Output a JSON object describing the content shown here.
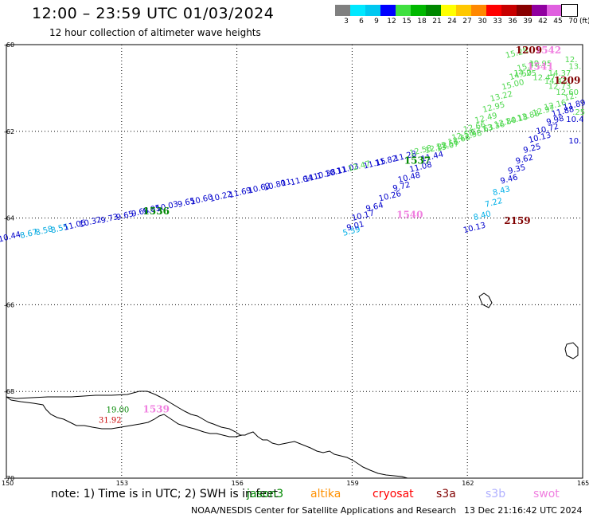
{
  "title": "12:00 – 23:59 UTC 01/03/2024",
  "subtitle": "12 hour collection of altimeter wave heights",
  "legend": {
    "values": [
      "3",
      "6",
      "9",
      "12",
      "15",
      "18",
      "21",
      "24",
      "27",
      "30",
      "33",
      "36",
      "39",
      "42",
      "45",
      "70"
    ],
    "colors": [
      "#808080",
      "#00e8ff",
      "#00c8f0",
      "#0000ff",
      "#40e040",
      "#00b800",
      "#008800",
      "#ffff00",
      "#ffc800",
      "#ff8800",
      "#ff0000",
      "#c80000",
      "#880000",
      "#9000a0",
      "#e060e0",
      "#ffffff"
    ],
    "units": "(ft)"
  },
  "map": {
    "x_ticks": [
      "150",
      "153",
      "156",
      "159",
      "162",
      "165"
    ],
    "y_ticks": [
      "-60",
      "-62",
      "-64",
      "-66",
      "-68",
      "-70"
    ]
  },
  "tracks": [
    {
      "color": "#0000cc",
      "points": [
        {
          "lon": 150.1,
          "lat": -64.49,
          "text": "10.44",
          "color": "#0000cc"
        },
        {
          "lon": 150.6,
          "lat": -64.42,
          "text": "8.67",
          "color": "#00a8e0"
        },
        {
          "lon": 151.0,
          "lat": -64.35,
          "text": "8.58",
          "color": "#00a8e0"
        },
        {
          "lon": 151.4,
          "lat": -64.3,
          "text": "8.55",
          "color": "#00a8e0"
        },
        {
          "lon": 151.8,
          "lat": -64.22,
          "text": "11.05",
          "color": "#0000cc"
        },
        {
          "lon": 152.2,
          "lat": -64.15,
          "text": "10.32",
          "color": "#0000cc"
        },
        {
          "lon": 152.7,
          "lat": -64.07,
          "text": "9.73",
          "color": "#0000cc"
        },
        {
          "lon": 153.1,
          "lat": -64.0,
          "text": "9.65",
          "color": "#0000cc"
        },
        {
          "lon": 153.5,
          "lat": -63.92,
          "text": "9.68",
          "color": "#0000cc"
        },
        {
          "lon": 153.8,
          "lat": -63.86,
          "text": "9.85",
          "color": "#0000cc"
        },
        {
          "lon": 154.2,
          "lat": -63.79,
          "text": "10.03",
          "color": "#0000cc"
        },
        {
          "lon": 154.7,
          "lat": -63.7,
          "text": "9.65",
          "color": "#0000cc"
        },
        {
          "lon": 155.1,
          "lat": -63.63,
          "text": "10.60",
          "color": "#0000cc"
        },
        {
          "lon": 155.6,
          "lat": -63.56,
          "text": "10.22",
          "color": "#0000cc"
        },
        {
          "lon": 156.1,
          "lat": -63.47,
          "text": "11.69",
          "color": "#0000cc"
        },
        {
          "lon": 156.6,
          "lat": -63.37,
          "text": "10.62",
          "color": "#0000cc"
        },
        {
          "lon": 157.0,
          "lat": -63.3,
          "text": "10.80",
          "color": "#0000cc"
        },
        {
          "lon": 157.3,
          "lat": -63.24,
          "text": "11",
          "color": "#0000cc"
        },
        {
          "lon": 157.7,
          "lat": -63.18,
          "text": "11.64",
          "color": "#0000cc"
        },
        {
          "lon": 158.0,
          "lat": -63.12,
          "text": "11.1",
          "color": "#0000cc"
        },
        {
          "lon": 158.3,
          "lat": -63.05,
          "text": "10.38",
          "color": "#0000cc"
        },
        {
          "lon": 158.6,
          "lat": -62.99,
          "text": "10.11",
          "color": "#0000cc"
        },
        {
          "lon": 158.9,
          "lat": -62.92,
          "text": "11.03",
          "color": "#0000cc"
        },
        {
          "lon": 159.2,
          "lat": -62.86,
          "text": "12.47",
          "color": "#50d850"
        },
        {
          "lon": 159.6,
          "lat": -62.8,
          "text": "11.15",
          "color": "#0000cc"
        },
        {
          "lon": 159.9,
          "lat": -62.74,
          "text": "11.82",
          "color": "#0000cc"
        },
        {
          "lon": 160.4,
          "lat": -62.63,
          "text": "11.28",
          "color": "#0000cc"
        },
        {
          "lon": 160.8,
          "lat": -62.5,
          "text": "12.58",
          "color": "#50d850"
        },
        {
          "lon": 161.2,
          "lat": -62.44,
          "text": "12.88",
          "color": "#50d850"
        },
        {
          "lon": 161.5,
          "lat": -62.36,
          "text": "12.56",
          "color": "#50d850"
        },
        {
          "lon": 161.8,
          "lat": -62.25,
          "text": "12.66",
          "color": "#50d850"
        },
        {
          "lon": 162.1,
          "lat": -62.15,
          "text": "12.98",
          "color": "#50d850"
        },
        {
          "lon": 162.4,
          "lat": -62.02,
          "text": "13.63",
          "color": "#50d850"
        },
        {
          "lon": 162.7,
          "lat": -61.95,
          "text": "13.36",
          "color": "#50d850"
        },
        {
          "lon": 163.0,
          "lat": -61.85,
          "text": "12.80",
          "color": "#50d850"
        },
        {
          "lon": 163.3,
          "lat": -61.78,
          "text": "14.18",
          "color": "#50d850"
        },
        {
          "lon": 163.6,
          "lat": -61.7,
          "text": "13.88",
          "color": "#50d850"
        },
        {
          "lon": 164.0,
          "lat": -61.58,
          "text": "12.97",
          "color": "#50d850"
        },
        {
          "lon": 164.3,
          "lat": -61.45,
          "text": "12.16",
          "color": "#50d850"
        },
        {
          "lon": 164.7,
          "lat": -61.26,
          "text": "12.",
          "color": "#50d850"
        }
      ]
    },
    {
      "color": "#0000cc",
      "points": [
        {
          "lon": 159.0,
          "lat": -64.36,
          "text": "5.59",
          "color": "#00b0e8"
        },
        {
          "lon": 159.1,
          "lat": -64.24,
          "text": "9.01",
          "color": "#0000cc"
        },
        {
          "lon": 159.3,
          "lat": -64.0,
          "text": "10.17",
          "color": "#0000cc"
        },
        {
          "lon": 159.6,
          "lat": -63.8,
          "text": "9.64",
          "color": "#0000cc"
        },
        {
          "lon": 160.0,
          "lat": -63.55,
          "text": "10.26",
          "color": "#0000cc"
        },
        {
          "lon": 160.3,
          "lat": -63.33,
          "text": "9.72",
          "color": "#0000cc"
        },
        {
          "lon": 160.5,
          "lat": -63.12,
          "text": "10.48",
          "color": "#0000cc"
        },
        {
          "lon": 160.8,
          "lat": -62.88,
          "text": "11.08",
          "color": "#0000cc"
        },
        {
          "lon": 161.1,
          "lat": -62.64,
          "text": "11.44",
          "color": "#0000cc"
        },
        {
          "lon": 161.5,
          "lat": -62.4,
          "text": "13.07",
          "color": "#50d850"
        },
        {
          "lon": 161.9,
          "lat": -62.15,
          "text": "12.56",
          "color": "#50d850"
        },
        {
          "lon": 162.2,
          "lat": -61.96,
          "text": "12.66",
          "color": "#50d850"
        },
        {
          "lon": 162.5,
          "lat": -61.75,
          "text": "12.49",
          "color": "#50d850"
        },
        {
          "lon": 162.7,
          "lat": -61.5,
          "text": "12.95",
          "color": "#50d850"
        },
        {
          "lon": 162.9,
          "lat": -61.25,
          "text": "13.22",
          "color": "#50d850"
        },
        {
          "lon": 163.2,
          "lat": -60.98,
          "text": "15.00",
          "color": "#50d850"
        },
        {
          "lon": 163.4,
          "lat": -60.75,
          "text": "14.50",
          "color": "#50d850"
        },
        {
          "lon": 163.6,
          "lat": -60.55,
          "text": "15.79",
          "color": "#50d850"
        },
        {
          "lon": 163.3,
          "lat": -60.25,
          "text": "15.25",
          "color": "#50d850"
        }
      ]
    },
    {
      "color": "#0000cc",
      "points": [
        {
          "lon": 162.2,
          "lat": -64.28,
          "text": "10.13",
          "color": "#0000cc"
        },
        {
          "lon": 162.4,
          "lat": -64.0,
          "text": "8.40",
          "color": "#00b0e8"
        },
        {
          "lon": 162.7,
          "lat": -63.7,
          "text": "7.22",
          "color": "#00b0e8"
        },
        {
          "lon": 162.9,
          "lat": -63.43,
          "text": "8.43",
          "color": "#00b0e8"
        },
        {
          "lon": 163.1,
          "lat": -63.16,
          "text": "9.46",
          "color": "#0000cc"
        },
        {
          "lon": 163.3,
          "lat": -62.93,
          "text": "9.35",
          "color": "#0000cc"
        },
        {
          "lon": 163.5,
          "lat": -62.7,
          "text": "9.62",
          "color": "#0000cc"
        },
        {
          "lon": 163.7,
          "lat": -62.45,
          "text": "9.25",
          "color": "#0000cc"
        },
        {
          "lon": 163.9,
          "lat": -62.2,
          "text": "10.13",
          "color": "#0000cc"
        },
        {
          "lon": 164.1,
          "lat": -62.0,
          "text": "10.72",
          "color": "#0000cc"
        },
        {
          "lon": 164.3,
          "lat": -61.8,
          "text": "9.98",
          "color": "#0000cc"
        },
        {
          "lon": 164.5,
          "lat": -61.6,
          "text": "11.88",
          "color": "#0000cc"
        },
        {
          "lon": 164.8,
          "lat": -61.45,
          "text": "11.89",
          "color": "#0000cc"
        }
      ]
    }
  ],
  "extra_labels": [
    {
      "lon": 164.8,
      "lat": -62.28,
      "text": "10.",
      "color": "#0000cc"
    },
    {
      "lon": 164.8,
      "lat": -61.78,
      "text": "10.4",
      "color": "#0000cc"
    },
    {
      "lon": 164.9,
      "lat": -61.62,
      "text": ".25",
      "color": "#50d850"
    },
    {
      "lon": 164.6,
      "lat": -61.16,
      "text": "12.60",
      "color": "#50d850"
    },
    {
      "lon": 164.4,
      "lat": -61.02,
      "text": "12.73",
      "color": "#50d850"
    },
    {
      "lon": 164.3,
      "lat": -60.9,
      "text": "14.42",
      "color": "#50d850"
    },
    {
      "lon": 164.0,
      "lat": -60.82,
      "text": "12.47",
      "color": "#50d850"
    },
    {
      "lon": 164.4,
      "lat": -60.72,
      "text": "14.37",
      "color": "#50d850"
    },
    {
      "lon": 163.5,
      "lat": -60.72,
      "text": "14.25",
      "color": "#50d850"
    },
    {
      "lon": 164.8,
      "lat": -60.56,
      "text": "13.",
      "color": "#50d850"
    },
    {
      "lon": 164.7,
      "lat": -60.4,
      "text": "12.",
      "color": "#50d850"
    },
    {
      "lon": 163.9,
      "lat": -60.5,
      "text": "12.95",
      "color": "#50d850"
    }
  ],
  "time_labels": [
    {
      "lon": 153.9,
      "lat": -63.92,
      "text": "1536",
      "color": "#008800"
    },
    {
      "lon": 160.7,
      "lat": -62.75,
      "text": "1537",
      "color": "#008800"
    },
    {
      "lon": 160.5,
      "lat": -64.0,
      "text": "1540",
      "color": "#f080e0"
    },
    {
      "lon": 164.1,
      "lat": -60.2,
      "text": "1542",
      "color": "#f080e0"
    },
    {
      "lon": 163.9,
      "lat": -60.58,
      "text": "1541",
      "color": "#f080e0"
    },
    {
      "lon": 163.6,
      "lat": -60.2,
      "text": "1209",
      "color": "#800000"
    },
    {
      "lon": 164.6,
      "lat": -60.9,
      "text": "1209",
      "color": "#800000"
    },
    {
      "lon": 163.3,
      "lat": -64.14,
      "text": "2159",
      "color": "#800000"
    },
    {
      "lon": 152.9,
      "lat": -68.48,
      "text": "19.00",
      "color": "#008800"
    },
    {
      "lon": 153.9,
      "lat": -68.48,
      "text": "1539",
      "color": "#f080e0"
    },
    {
      "lon": 152.7,
      "lat": -68.72,
      "text": "31.92",
      "color": "#c80000"
    }
  ],
  "note": {
    "text": "note: 1) Time is in UTC; 2) SWH is in feet"
  },
  "sources": [
    {
      "text": "jason3",
      "color": "#008800"
    },
    {
      "text": "altika",
      "color": "#ff9000"
    },
    {
      "text": "cryosat",
      "color": "#ff0000"
    },
    {
      "text": "s3a",
      "color": "#800000"
    },
    {
      "text": "s3b",
      "color": "#b0b0ff"
    },
    {
      "text": "swot",
      "color": "#f080e0"
    }
  ],
  "credit": "NOAA/NESDIS Center for Satellite Applications and Research",
  "timestamp": "13 Dec 21:16:42 UTC 2024"
}
